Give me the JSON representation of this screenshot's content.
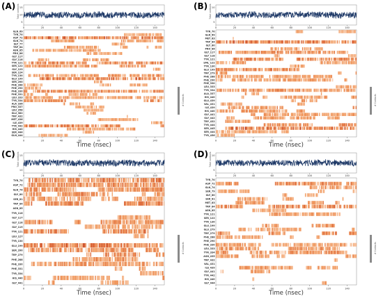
{
  "figure": {
    "panels": [
      {
        "label": "(A)"
      },
      {
        "label": "(B)"
      },
      {
        "label": "(C)"
      },
      {
        "label": "(D)"
      }
    ]
  },
  "chart_data": [
    {
      "type": "heatmap",
      "panel": "(A)",
      "xlabel": "Time (nsec)",
      "top_ylabel": "Total contacts",
      "colorbar_label": "# Contacts",
      "x_ticks": [
        "0",
        "20",
        "40",
        "60",
        "80",
        "100",
        "120",
        "140"
      ],
      "top_yticks": [
        "5",
        "10",
        "15"
      ],
      "xlim": [
        0,
        150
      ],
      "residues": [
        "GLN_69",
        "TYR_70",
        "ASP_72",
        "GLN_74",
        "GLY_77",
        "TRP_84",
        "ASN_85",
        "PRO_86",
        "GLY_117",
        "GLY_118",
        "TYR_121",
        "SER_122",
        "GLY_123",
        "SER_124",
        "TYR_130",
        "GLU_199",
        "SER_200",
        "PHE_288",
        "PHE_290",
        "PHE_330",
        "PHE_331",
        "LEU_333",
        "TYR_334",
        "ALA_336",
        "PRO_337",
        "LEU_358",
        "GLU_382",
        "TRP_432",
        "MET_436",
        "ILE_439",
        "TYR_442",
        "HIS_440",
        "SER_444",
        "GLN_444"
      ],
      "occupancy": [
        0.1,
        0.15,
        0.8,
        0.3,
        0.35,
        0.3,
        0.25,
        0.2,
        0.3,
        0.35,
        0.7,
        0.4,
        0.2,
        0.15,
        0.4,
        0.75,
        0.35,
        0.3,
        0.3,
        0.7,
        0.2,
        0.3,
        0.6,
        0.3,
        0.2,
        0.15,
        0.2,
        0.2,
        0.2,
        0.15,
        0.7,
        0.3,
        0.25,
        0.2
      ]
    },
    {
      "type": "heatmap",
      "panel": "(B)",
      "xlabel": "Time (nsec)",
      "top_ylabel": "Total contacts",
      "colorbar_label": "# Contacts",
      "x_ticks": [
        "0",
        "20",
        "40",
        "60",
        "80",
        "100",
        "120",
        "140"
      ],
      "top_yticks": [
        "5",
        "10"
      ],
      "xlim": [
        0,
        150
      ],
      "residues": [
        "TYR_70",
        "GLN_69",
        "MET_83",
        "TRP_84",
        "GLY_80",
        "PRO_86",
        "GLY_117",
        "GLY_118",
        "TYR_121",
        "SML_122",
        "TYR_130",
        "GLU_199",
        "TRP_279",
        "PHE_288",
        "PHE_290",
        "PHE_330",
        "LEU_333",
        "TYR_334",
        "ALA_337",
        "HIS_440",
        "GLU_439",
        "VAL_431",
        "ILE_439",
        "HIS_440",
        "GLY_441",
        "GLY_442",
        "TRP_432",
        "TYR_444",
        "SER_445",
        "SER_444",
        "TYR_456"
      ],
      "occupancy": [
        0.15,
        0.2,
        0.2,
        0.8,
        0.25,
        0.35,
        0.5,
        0.35,
        0.65,
        0.3,
        0.25,
        0.6,
        0.4,
        0.3,
        0.35,
        0.3,
        0.35,
        0.5,
        0.3,
        0.35,
        0.4,
        0.35,
        0.45,
        0.35,
        0.3,
        0.3,
        0.35,
        0.6,
        0.85,
        0.2,
        0.15
      ]
    },
    {
      "type": "heatmap",
      "panel": "(C)",
      "xlabel": "Time (nsec)",
      "top_ylabel": "Total contacts",
      "colorbar_label": "# Contacts",
      "x_ticks": [
        "0",
        "20",
        "40",
        "60",
        "80",
        "100",
        "120",
        "140"
      ],
      "top_yticks": [
        "10",
        "15"
      ],
      "xlim": [
        0,
        150
      ],
      "residues": [
        "TYR_70",
        "ASP_72",
        "GLN_74",
        "GLY_80",
        "SER_81",
        "TRP_84",
        "ASN_85",
        "TYR_116",
        "GLY_117",
        "GLY_118",
        "GLY_119",
        "TYR_121",
        "LEU_127",
        "TYR_130",
        "GLU_199",
        "SER_200",
        "TRP_279",
        "PHE_288",
        "PHE_330",
        "PHE_331",
        "TYR_334",
        "HIS_440",
        "GLY_441"
      ],
      "occupancy": [
        0.75,
        0.6,
        0.55,
        0.5,
        0.4,
        0.7,
        0.2,
        0.15,
        0.3,
        0.55,
        0.25,
        0.7,
        0.2,
        0.3,
        0.8,
        0.6,
        0.6,
        0.45,
        0.45,
        0.4,
        0.35,
        0.35,
        0.3
      ]
    },
    {
      "type": "heatmap",
      "panel": "(D)",
      "xlabel": "Time (nsec)",
      "top_ylabel": "Total contacts",
      "colorbar_label": "# Contacts",
      "x_ticks": [
        "0",
        "20",
        "40",
        "60",
        "80",
        "100",
        "120",
        "140"
      ],
      "top_yticks": [
        "5",
        "10"
      ],
      "xlim": [
        0,
        150
      ],
      "residues": [
        "TYR_70",
        "ASP_72",
        "GLN_74",
        "SER_79",
        "GLY_80",
        "SER_81",
        "MET_83",
        "TRP_84",
        "ASN_85",
        "TYR_121",
        "SER_122",
        "TYR_130",
        "GLU_199",
        "GLU_279",
        "TRP_279",
        "PHE_288",
        "PHE_290",
        "PHE_330",
        "LEU_333",
        "TYR_334",
        "ASN_435",
        "TRP_432",
        "VAL_431",
        "ILE_439",
        "GLY_441",
        "TYR_442",
        "HIS_440",
        "GLY_444"
      ],
      "occupancy": [
        0.2,
        0.6,
        0.35,
        0.3,
        0.3,
        0.35,
        0.4,
        0.7,
        0.25,
        0.3,
        0.3,
        0.3,
        0.5,
        0.3,
        0.6,
        0.3,
        0.3,
        0.35,
        0.45,
        0.55,
        0.35,
        0.3,
        0.3,
        0.35,
        0.3,
        0.3,
        0.3,
        0.25
      ]
    }
  ]
}
